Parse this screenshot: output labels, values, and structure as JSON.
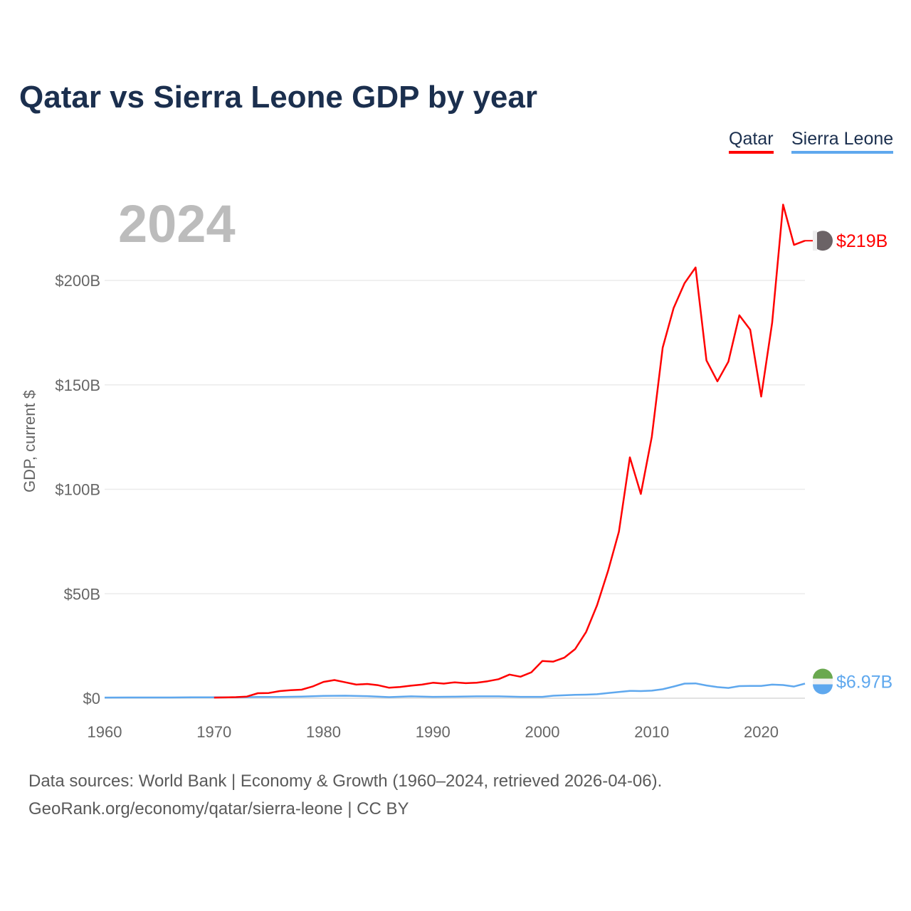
{
  "title": "Qatar vs Sierra Leone GDP by year",
  "legend": [
    "Qatar",
    "Sierra Leone"
  ],
  "current_year": "2024",
  "footer": {
    "line1": "Data sources: World Bank | Economy & Growth (1960–2024, retrieved 2026-04-06).",
    "line2": "GeoRank.org/economy/qatar/sierra-leone | CC BY"
  },
  "chart_data": {
    "type": "line",
    "title": "Qatar vs Sierra Leone GDP by year",
    "xlabel": "",
    "ylabel": "GDP, current $",
    "xlim": [
      1960,
      2024
    ],
    "ylim": [
      0,
      240
    ],
    "y_unit": "billion USD",
    "yticks": [
      0,
      50,
      100,
      150,
      200
    ],
    "ytick_labels": [
      "$0",
      "$50B",
      "$100B",
      "$150B",
      "$200B"
    ],
    "xticks": [
      1960,
      1970,
      1980,
      1990,
      2000,
      2010,
      2020
    ],
    "xtick_labels": [
      "1960",
      "1970",
      "1980",
      "1990",
      "2000",
      "2010",
      "2020"
    ],
    "grid": true,
    "legend_position": "top-right",
    "series": [
      {
        "name": "Qatar",
        "color": "#ff0000",
        "end_label": "$219B",
        "x": [
          1970,
          1971,
          1972,
          1973,
          1974,
          1975,
          1976,
          1977,
          1978,
          1979,
          1980,
          1981,
          1982,
          1983,
          1984,
          1985,
          1986,
          1987,
          1988,
          1989,
          1990,
          1991,
          1992,
          1993,
          1994,
          1995,
          1996,
          1997,
          1998,
          1999,
          2000,
          2001,
          2002,
          2003,
          2004,
          2005,
          2006,
          2007,
          2008,
          2009,
          2010,
          2011,
          2012,
          2013,
          2014,
          2015,
          2016,
          2017,
          2018,
          2019,
          2020,
          2021,
          2022,
          2023,
          2024
        ],
        "values": [
          0.3,
          0.39,
          0.5,
          0.8,
          2.4,
          2.5,
          3.4,
          3.8,
          4.1,
          5.6,
          7.8,
          8.7,
          7.6,
          6.5,
          6.8,
          6.2,
          5.0,
          5.4,
          6.0,
          6.5,
          7.4,
          7.0,
          7.6,
          7.2,
          7.4,
          8.1,
          9.1,
          11.3,
          10.3,
          12.4,
          17.8,
          17.5,
          19.4,
          23.5,
          31.7,
          44.5,
          60.9,
          79.7,
          115.3,
          97.8,
          125.1,
          167.8,
          186.8,
          198.7,
          206.2,
          161.7,
          151.7,
          161.1,
          183.3,
          176.4,
          144.4,
          179.7,
          236.3,
          217.0,
          219.0
        ]
      },
      {
        "name": "Sierra Leone",
        "color": "#5fa8ee",
        "end_label": "$6.97B",
        "x": [
          1960,
          1962,
          1964,
          1966,
          1968,
          1970,
          1972,
          1974,
          1976,
          1978,
          1980,
          1982,
          1984,
          1986,
          1988,
          1990,
          1992,
          1994,
          1996,
          1998,
          2000,
          2001,
          2002,
          2003,
          2004,
          2005,
          2006,
          2007,
          2008,
          2009,
          2010,
          2011,
          2012,
          2013,
          2014,
          2015,
          2016,
          2017,
          2018,
          2019,
          2020,
          2021,
          2022,
          2023,
          2024
        ],
        "values": [
          0.3,
          0.33,
          0.35,
          0.35,
          0.4,
          0.4,
          0.45,
          0.6,
          0.6,
          0.8,
          1.1,
          1.2,
          1.0,
          0.5,
          0.9,
          0.65,
          0.7,
          0.9,
          0.9,
          0.65,
          0.64,
          1.2,
          1.4,
          1.6,
          1.7,
          1.9,
          2.5,
          3.0,
          3.5,
          3.4,
          3.6,
          4.3,
          5.6,
          7.0,
          7.1,
          6.1,
          5.3,
          4.9,
          5.8,
          5.9,
          5.9,
          6.5,
          6.3,
          5.6,
          6.97
        ]
      }
    ]
  }
}
